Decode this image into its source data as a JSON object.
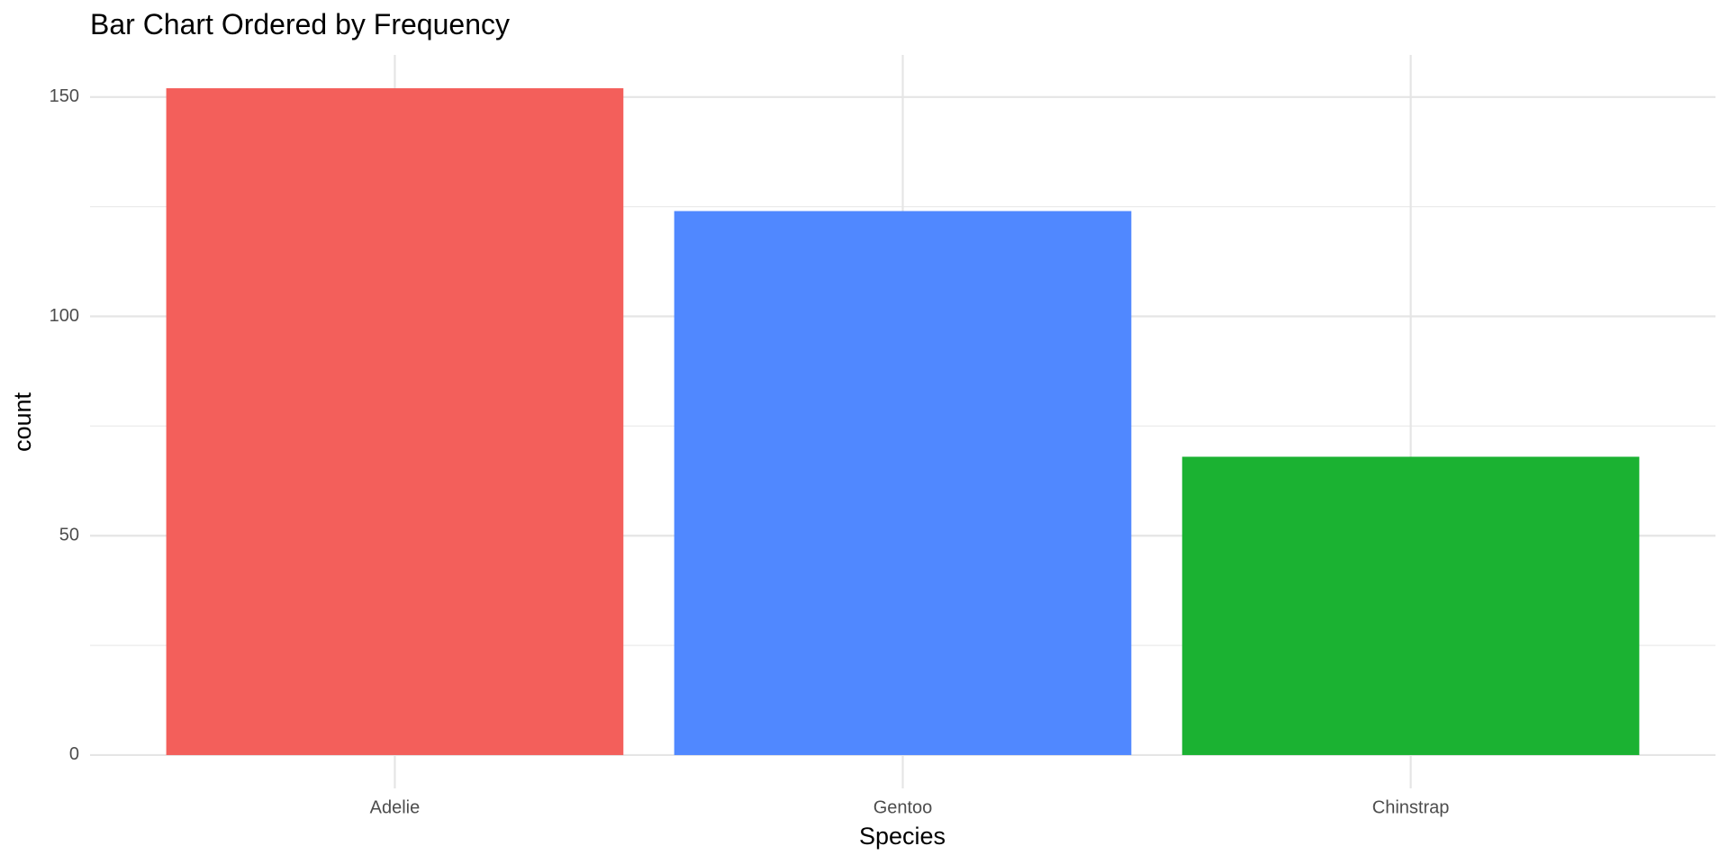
{
  "chart_data": {
    "type": "bar",
    "title": "Bar Chart Ordered by Frequency",
    "x_label": "Species",
    "y_label": "count",
    "categories": [
      "Adelie",
      "Gentoo",
      "Chinstrap"
    ],
    "values": [
      152,
      124,
      68
    ],
    "colors": [
      "#F35F5B",
      "#5088FF",
      "#1BB232"
    ],
    "ylim": [
      -7.6,
      159.6
    ],
    "yticks": [
      0,
      50,
      100,
      150
    ],
    "minor_yticks": [
      25,
      75,
      125
    ],
    "grid": true
  }
}
